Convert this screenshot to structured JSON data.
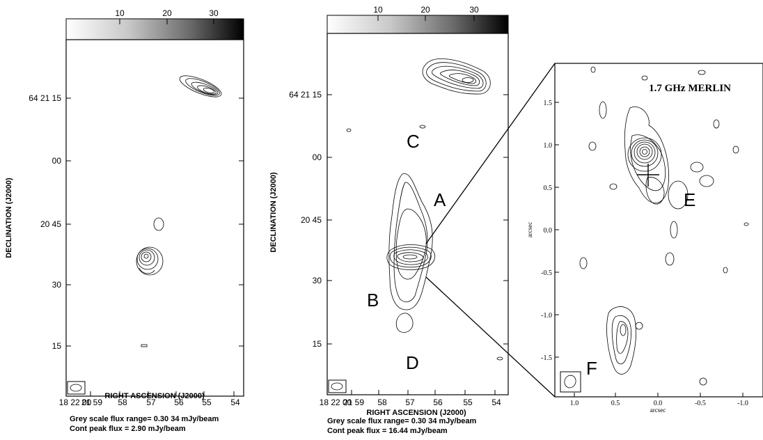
{
  "colorbar": {
    "ticks": [
      "10",
      "20",
      "30"
    ]
  },
  "left_panel": {
    "ylabel": "DECLINATION (J2000)",
    "xlabel": "RIGHT ASCENSION (J2000)",
    "yticks": [
      "64 21 15",
      "00",
      "20 45",
      "30",
      "15"
    ],
    "xticks": [
      "18 22 00",
      "21 59",
      "58",
      "57",
      "56",
      "55",
      "54"
    ],
    "footer_line1": "Grey scale flux range= 0.30 34 mJy/beam",
    "footer_line2": "Cont peak flux =  2.90 mJy/beam"
  },
  "mid_panel": {
    "ylabel": "DECLINATION (J2000)",
    "xlabel": "RIGHT ASCENSION (J2000)",
    "yticks": [
      "64 21 15",
      "00",
      "20 45",
      "30",
      "15"
    ],
    "xticks": [
      "18 22 00",
      "21 59",
      "58",
      "57",
      "56",
      "55",
      "54"
    ],
    "labels": {
      "A": "A",
      "B": "B",
      "C": "C",
      "D": "D"
    },
    "footer_line1": "Grey scale flux range= 0.30 34 mJy/beam",
    "footer_line2": "Cont peak flux =  16.44 mJy/beam"
  },
  "inset": {
    "title": "1.7 GHz MERLIN",
    "ylabel": "arcsec",
    "xlabel": "arcsec",
    "yticks": [
      "1.5",
      "1.0",
      "0.5",
      "0.0",
      "-0.5",
      "-1.0",
      "-1.5"
    ],
    "xticks": [
      "1.0",
      "0.5",
      "0.0",
      "-0.5",
      "-1.0"
    ],
    "labels": {
      "E": "E",
      "F": "F"
    }
  }
}
